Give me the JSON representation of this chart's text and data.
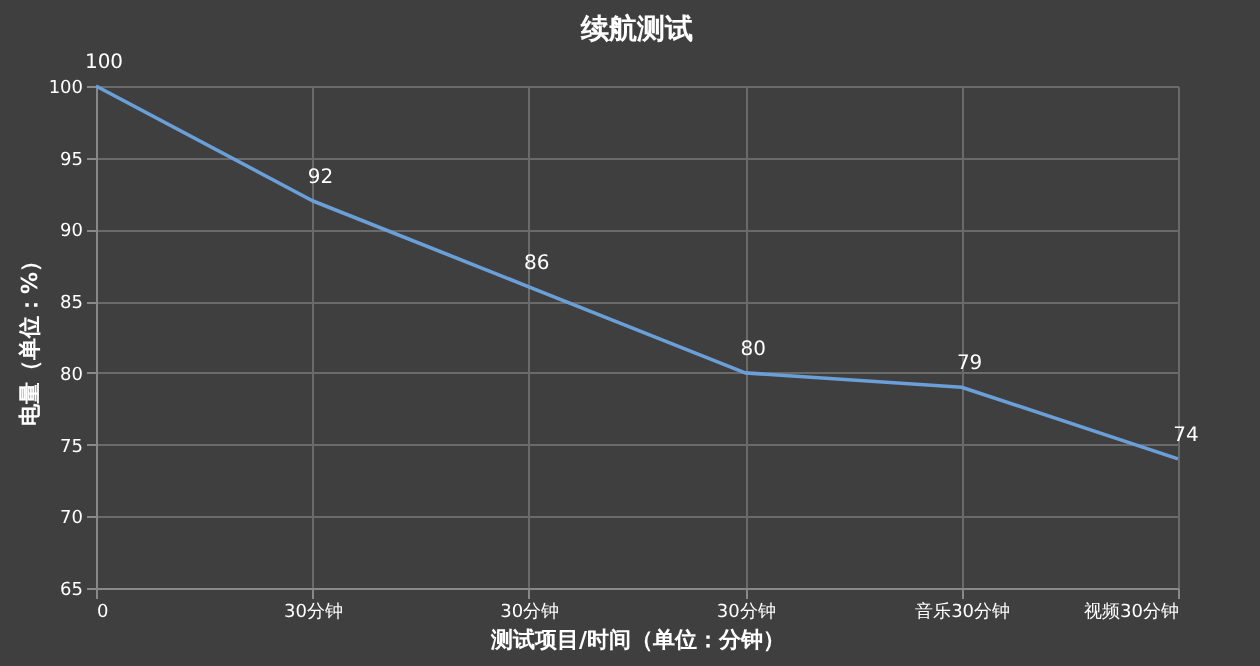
{
  "chart_data": {
    "type": "line",
    "title": "续航测试",
    "xlabel": "测试项目/时间（单位：分钟）",
    "ylabel": "电量（单位：%）",
    "categories": [
      "0",
      "30分钟",
      "30分钟",
      "30分钟",
      "音乐30分钟",
      "视频30分钟"
    ],
    "series": [
      {
        "color": "#6a9fd8",
        "values": [
          100,
          92,
          86,
          80,
          79,
          74
        ]
      }
    ],
    "ylim": [
      65,
      100
    ],
    "yticks": [
      65,
      70,
      75,
      80,
      85,
      90,
      95,
      100
    ],
    "grid": true,
    "data_labels": true,
    "marker": "none",
    "line_style": "solid"
  }
}
